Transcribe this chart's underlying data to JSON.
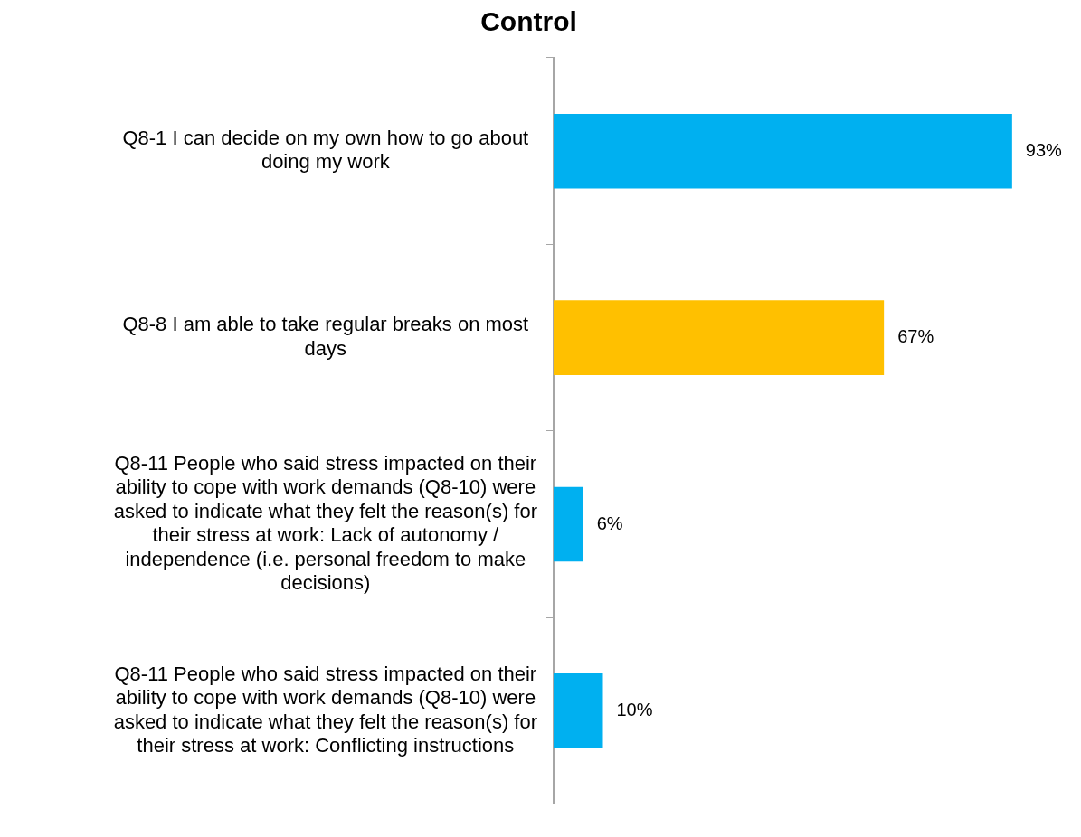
{
  "chart_data": {
    "type": "bar",
    "orientation": "horizontal",
    "title": "Control",
    "categories": [
      "Q8-1 I can decide on my own how to go about doing my work",
      "Q8-8 I am able to take regular breaks on most days",
      "Q8-11 People who said stress impacted on their ability to cope with work demands (Q8-10) were asked to indicate what they felt the reason(s) for their stress at work: Lack of autonomy / independence (i.e. personal freedom to make decisions)",
      "Q8-11 People who said stress impacted on their ability to cope with work demands (Q8-10) were asked to indicate what they felt the reason(s) for their stress at work: Conflicting instructions"
    ],
    "values": [
      93,
      67,
      6,
      10
    ],
    "colors": [
      "#00b0f0",
      "#ffc000",
      "#00b0f0",
      "#00b0f0"
    ],
    "value_labels": [
      "93%",
      "67%",
      "6%",
      "10%"
    ],
    "grid": false,
    "legend": false
  }
}
